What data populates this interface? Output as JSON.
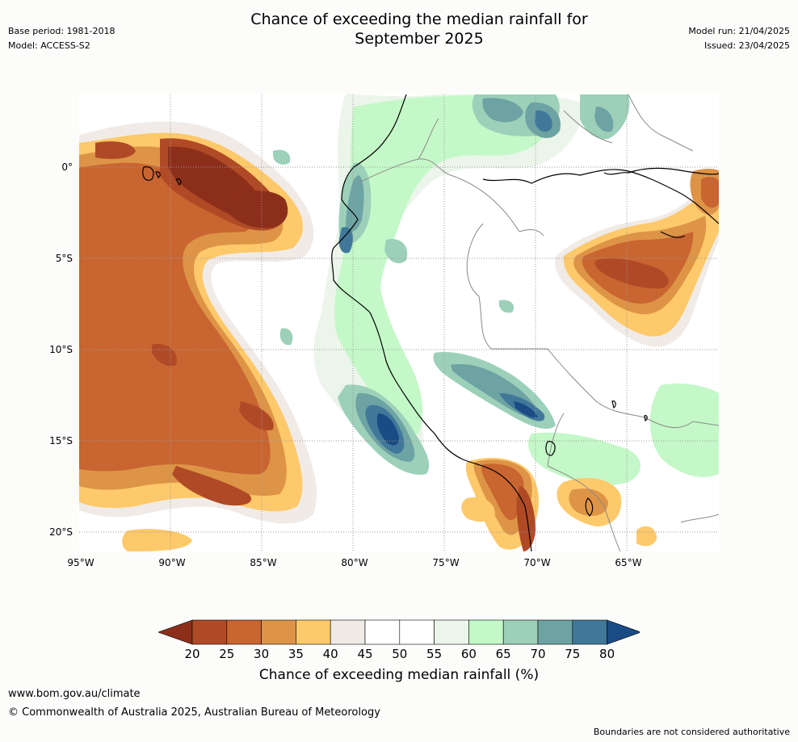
{
  "header": {
    "title_line1": "Chance of exceeding the median rainfall for",
    "title_line2": "September 2025",
    "base_period": "Base period: 1981-2018",
    "model": "Model: ACCESS-S2",
    "model_run": "Model run: 21/04/2025",
    "issued": "Issued: 23/04/2025"
  },
  "map": {
    "lat_labels": [
      "0°",
      "5°S",
      "10°S",
      "15°S",
      "20°S"
    ],
    "lon_labels": [
      "95°W",
      "90°W",
      "85°W",
      "80°W",
      "75°W",
      "70°W",
      "65°W"
    ]
  },
  "legend": {
    "title": "Chance of exceeding median rainfall (%)",
    "ticks": [
      "20",
      "25",
      "30",
      "35",
      "40",
      "45",
      "50",
      "55",
      "60",
      "65",
      "70",
      "75",
      "80"
    ],
    "colors": [
      "#8c2f1a",
      "#b04a26",
      "#c96530",
      "#dd9447",
      "#fdc96a",
      "#f0ebe7",
      "#ffffff",
      "#ffffff",
      "#ebf5ea",
      "#c4f8c8",
      "#9cd0b9",
      "#6ea3a4",
      "#41789a",
      "#1b4b85"
    ]
  },
  "footer": {
    "url": "www.bom.gov.au/climate",
    "copyright": "© Commonwealth of Australia 2025, Australian Bureau of Meteorology",
    "disclaimer": "Boundaries are not considered authoritative"
  }
}
